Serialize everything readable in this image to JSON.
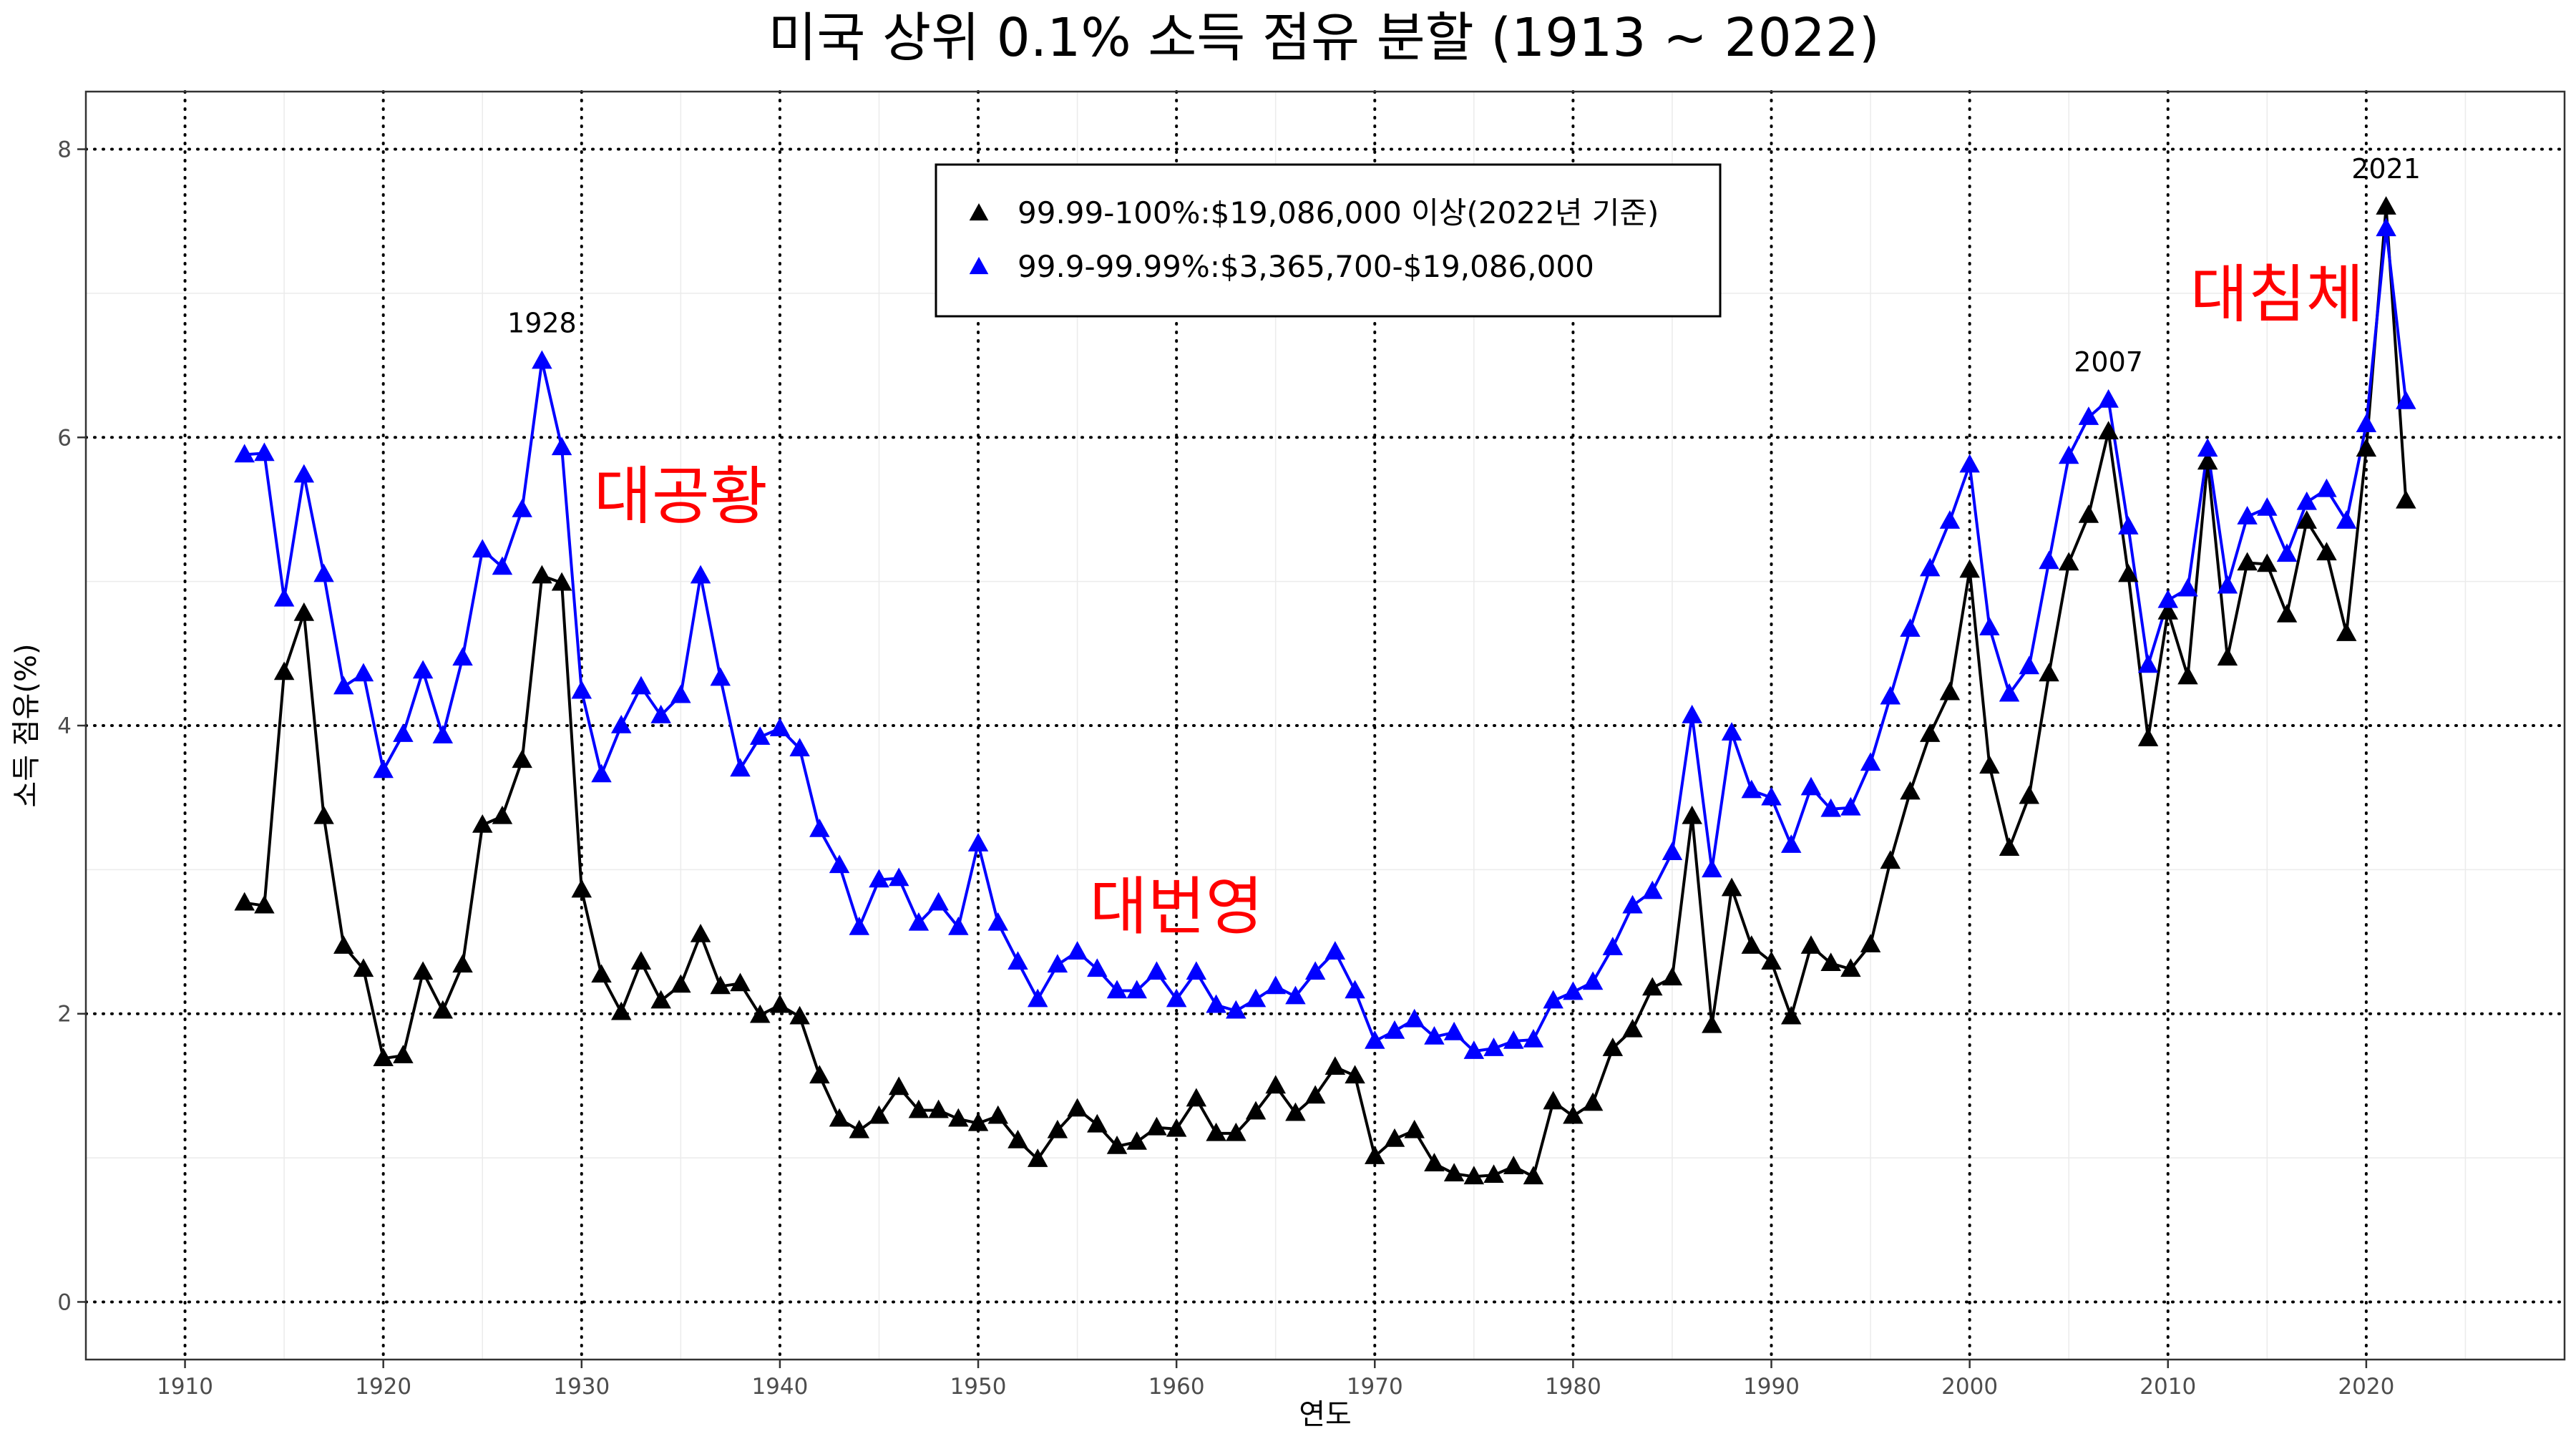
{
  "chart_data": {
    "type": "line",
    "title": "미국 상위 0.1% 소득 점유 분할 (1913 ~ 2022)",
    "xlabel": "연도",
    "ylabel": "소득 점유(%)",
    "xlim": [
      1905,
      2030
    ],
    "ylim": [
      -0.4,
      8.4
    ],
    "x_ticks": [
      1910,
      1920,
      1930,
      1940,
      1950,
      1960,
      1970,
      1980,
      1990,
      2000,
      2010,
      2020
    ],
    "y_ticks": [
      0,
      2,
      4,
      6,
      8
    ],
    "grid": true,
    "legend_position": "top-center",
    "x": [
      1913,
      1914,
      1915,
      1916,
      1917,
      1918,
      1919,
      1920,
      1921,
      1922,
      1923,
      1924,
      1925,
      1926,
      1927,
      1928,
      1929,
      1930,
      1931,
      1932,
      1933,
      1934,
      1935,
      1936,
      1937,
      1938,
      1939,
      1940,
      1941,
      1942,
      1943,
      1944,
      1945,
      1946,
      1947,
      1948,
      1949,
      1950,
      1951,
      1952,
      1953,
      1954,
      1955,
      1956,
      1957,
      1958,
      1959,
      1960,
      1961,
      1962,
      1963,
      1964,
      1965,
      1966,
      1967,
      1968,
      1969,
      1970,
      1971,
      1972,
      1973,
      1974,
      1975,
      1976,
      1977,
      1978,
      1979,
      1980,
      1981,
      1982,
      1983,
      1984,
      1985,
      1986,
      1987,
      1988,
      1989,
      1990,
      1991,
      1992,
      1993,
      1994,
      1995,
      1996,
      1997,
      1998,
      1999,
      2000,
      2001,
      2002,
      2003,
      2004,
      2005,
      2006,
      2007,
      2008,
      2009,
      2010,
      2011,
      2012,
      2013,
      2014,
      2015,
      2016,
      2017,
      2018,
      2019,
      2020,
      2021,
      2022
    ],
    "series": [
      {
        "name": "99.99-100%:$19,086,000 이상(2022년 기준)",
        "color": "#000000",
        "values": [
          2.77,
          2.75,
          4.37,
          4.78,
          3.37,
          2.47,
          2.31,
          1.69,
          1.71,
          2.29,
          2.02,
          2.34,
          3.31,
          3.37,
          3.76,
          5.04,
          4.99,
          2.86,
          2.27,
          2.01,
          2.36,
          2.09,
          2.2,
          2.55,
          2.19,
          2.21,
          1.99,
          2.06,
          1.98,
          1.57,
          1.27,
          1.19,
          1.29,
          1.49,
          1.33,
          1.33,
          1.27,
          1.24,
          1.29,
          1.12,
          0.99,
          1.19,
          1.34,
          1.23,
          1.08,
          1.11,
          1.21,
          1.2,
          1.41,
          1.17,
          1.17,
          1.32,
          1.5,
          1.31,
          1.43,
          1.63,
          1.57,
          1.01,
          1.13,
          1.19,
          0.96,
          0.89,
          0.87,
          0.88,
          0.94,
          0.87,
          1.39,
          1.29,
          1.38,
          1.76,
          1.89,
          2.18,
          2.25,
          3.37,
          1.92,
          2.87,
          2.47,
          2.36,
          1.98,
          2.47,
          2.35,
          2.31,
          2.48,
          3.06,
          3.54,
          3.94,
          4.23,
          5.08,
          3.72,
          3.15,
          3.51,
          4.36,
          5.13,
          5.46,
          6.04,
          5.05,
          3.91,
          4.79,
          4.34,
          5.83,
          4.47,
          5.13,
          5.12,
          4.77,
          5.42,
          5.2,
          4.64,
          5.92,
          7.6,
          5.56
        ]
      },
      {
        "name": "99.9-99.99%:$3,365,700-$19,086,000",
        "color": "#0000ff",
        "values": [
          5.88,
          5.89,
          4.88,
          5.74,
          5.05,
          4.27,
          4.36,
          3.69,
          3.94,
          4.38,
          3.93,
          4.47,
          5.22,
          5.1,
          5.5,
          6.53,
          5.93,
          4.24,
          3.66,
          4.0,
          4.27,
          4.07,
          4.21,
          5.04,
          4.33,
          3.7,
          3.92,
          3.98,
          3.84,
          3.28,
          3.03,
          2.6,
          2.93,
          2.94,
          2.63,
          2.77,
          2.6,
          3.18,
          2.63,
          2.36,
          2.1,
          2.34,
          2.43,
          2.31,
          2.16,
          2.16,
          2.29,
          2.1,
          2.29,
          2.06,
          2.02,
          2.1,
          2.19,
          2.12,
          2.29,
          2.43,
          2.16,
          1.81,
          1.88,
          1.96,
          1.84,
          1.87,
          1.74,
          1.76,
          1.81,
          1.82,
          2.09,
          2.15,
          2.22,
          2.46,
          2.75,
          2.85,
          3.12,
          4.07,
          3.0,
          3.95,
          3.55,
          3.5,
          3.17,
          3.57,
          3.42,
          3.43,
          3.74,
          4.2,
          4.67,
          5.09,
          5.42,
          5.81,
          4.68,
          4.22,
          4.41,
          5.14,
          5.87,
          6.14,
          6.26,
          5.38,
          4.42,
          4.87,
          4.95,
          5.92,
          4.97,
          5.45,
          5.51,
          5.19,
          5.55,
          5.64,
          5.42,
          6.09,
          7.45,
          6.25
        ]
      }
    ],
    "peak_annotations": [
      {
        "label": "1928",
        "x": 1928,
        "y": 6.53
      },
      {
        "label": "2007",
        "x": 2007,
        "y": 6.26
      },
      {
        "label": "2021",
        "x": 2021,
        "y": 7.6
      }
    ],
    "era_annotations": [
      {
        "label": "대공황",
        "x": 1935,
        "y": 5.6
      },
      {
        "label": "대번영",
        "x": 1960,
        "y": 2.75
      },
      {
        "label": "대침체",
        "x": 2015.5,
        "y": 7.0
      }
    ]
  }
}
